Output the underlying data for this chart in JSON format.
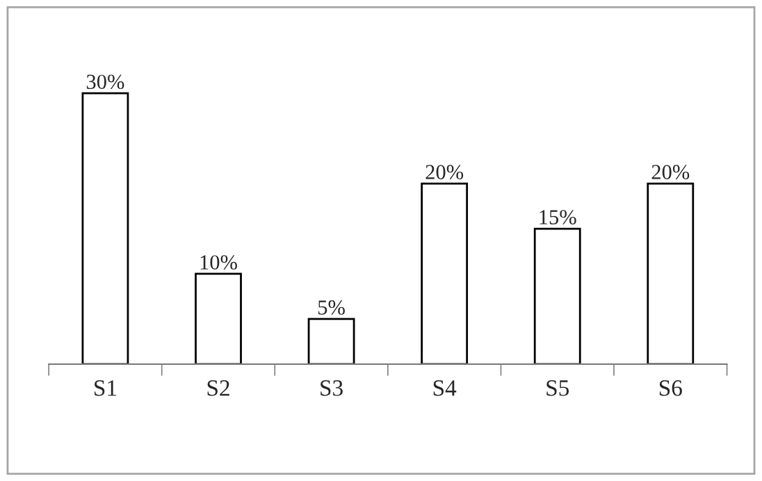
{
  "chart_data": {
    "type": "bar",
    "categories": [
      "S1",
      "S2",
      "S3",
      "S4",
      "S5",
      "S6"
    ],
    "values": [
      30,
      10,
      5,
      20,
      15,
      20
    ],
    "value_labels": [
      "30%",
      "10%",
      "5%",
      "20%",
      "15%",
      "20%"
    ],
    "color": "#ffffff",
    "grid": false,
    "legend": false
  }
}
